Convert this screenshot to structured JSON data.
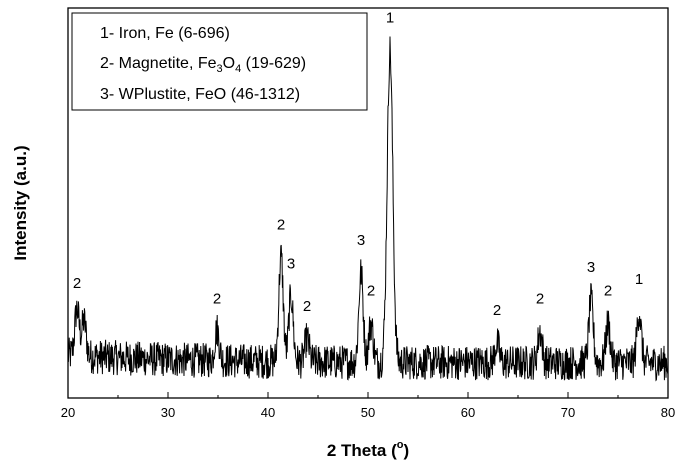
{
  "chart_data": {
    "type": "line",
    "title": "",
    "xlabel": "2 Theta (",
    "xlabel_sup": "o",
    "xlabel_end": ")",
    "ylabel": "Intensity (a.u.)",
    "xlim": [
      20,
      80
    ],
    "x_ticks": [
      "20",
      "30",
      "40",
      "50",
      "60",
      "70",
      "80"
    ],
    "y_ticks_labeled": false,
    "grid": false,
    "legend_position": "top-left",
    "line_color": "#000000",
    "legend": [
      {
        "id": "1",
        "text": "1- Iron, Fe (6-696)"
      },
      {
        "id": "2",
        "pre": "2- Magnetite, Fe",
        "sub1": "3",
        "mid": "O",
        "sub2": "4",
        "post": " (19-629)"
      },
      {
        "id": "3",
        "text": "3- WPlustite, FeO (46-1312)"
      }
    ],
    "baseline": 0.09,
    "noise_amplitude": 0.045,
    "peaks": [
      {
        "x": 20.9,
        "height": 0.12,
        "label": "2"
      },
      {
        "x": 21.6,
        "height": 0.09,
        "label": ""
      },
      {
        "x": 34.9,
        "height": 0.08,
        "label": "2"
      },
      {
        "x": 41.3,
        "height": 0.27,
        "label": "2"
      },
      {
        "x": 42.3,
        "height": 0.17,
        "label": "3"
      },
      {
        "x": 43.9,
        "height": 0.06,
        "label": "2"
      },
      {
        "x": 49.3,
        "height": 0.23,
        "label": "3"
      },
      {
        "x": 50.3,
        "height": 0.1,
        "label": "2"
      },
      {
        "x": 52.2,
        "height": 0.8,
        "label": "1"
      },
      {
        "x": 62.9,
        "height": 0.05,
        "label": "2"
      },
      {
        "x": 67.2,
        "height": 0.08,
        "label": "2"
      },
      {
        "x": 72.3,
        "height": 0.16,
        "label": "3"
      },
      {
        "x": 74.0,
        "height": 0.1,
        "label": "2"
      },
      {
        "x": 77.1,
        "height": 0.13,
        "label": "1"
      }
    ]
  }
}
